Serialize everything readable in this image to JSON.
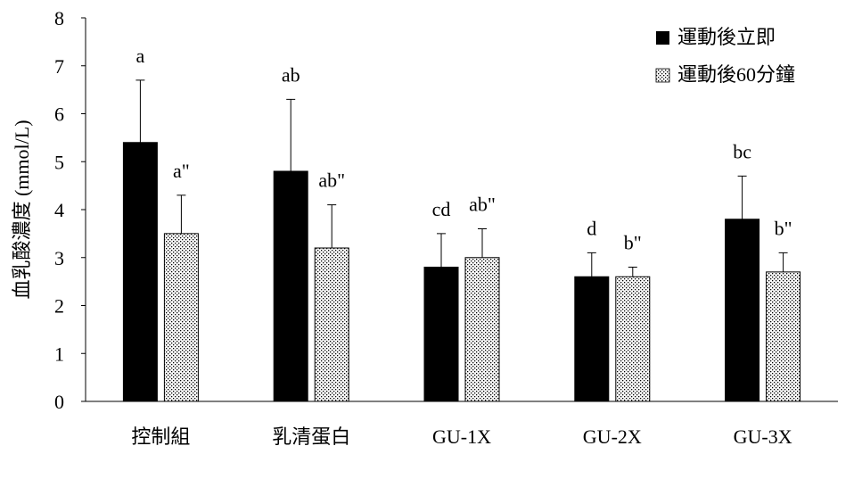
{
  "chart_data": {
    "type": "bar",
    "ylabel": "血乳酸濃度 (mmol/L)",
    "ylim": [
      0,
      8
    ],
    "yticks": [
      0,
      1,
      2,
      3,
      4,
      5,
      6,
      7,
      8
    ],
    "categories": [
      "控制組",
      "乳清蛋白",
      "GU-1X",
      "GU-2X",
      "GU-3X"
    ],
    "legend_position": "top-right",
    "grid": false,
    "series": [
      {
        "name": "運動後立即",
        "color": "#000000",
        "fill": "solid",
        "values": [
          5.4,
          4.8,
          2.8,
          2.6,
          3.8
        ],
        "errors": [
          1.3,
          1.5,
          0.7,
          0.5,
          0.9
        ],
        "labels": [
          "a",
          "ab",
          "cd",
          "d",
          "bc"
        ]
      },
      {
        "name": "運動後60分鐘",
        "color": "#ffffff",
        "fill": "dotted",
        "values": [
          3.5,
          3.2,
          3.0,
          2.6,
          2.7
        ],
        "errors": [
          0.8,
          0.9,
          0.6,
          0.2,
          0.4
        ],
        "labels": [
          "a\"",
          "ab\"",
          "ab\"",
          "b\"",
          "b\""
        ]
      }
    ]
  }
}
